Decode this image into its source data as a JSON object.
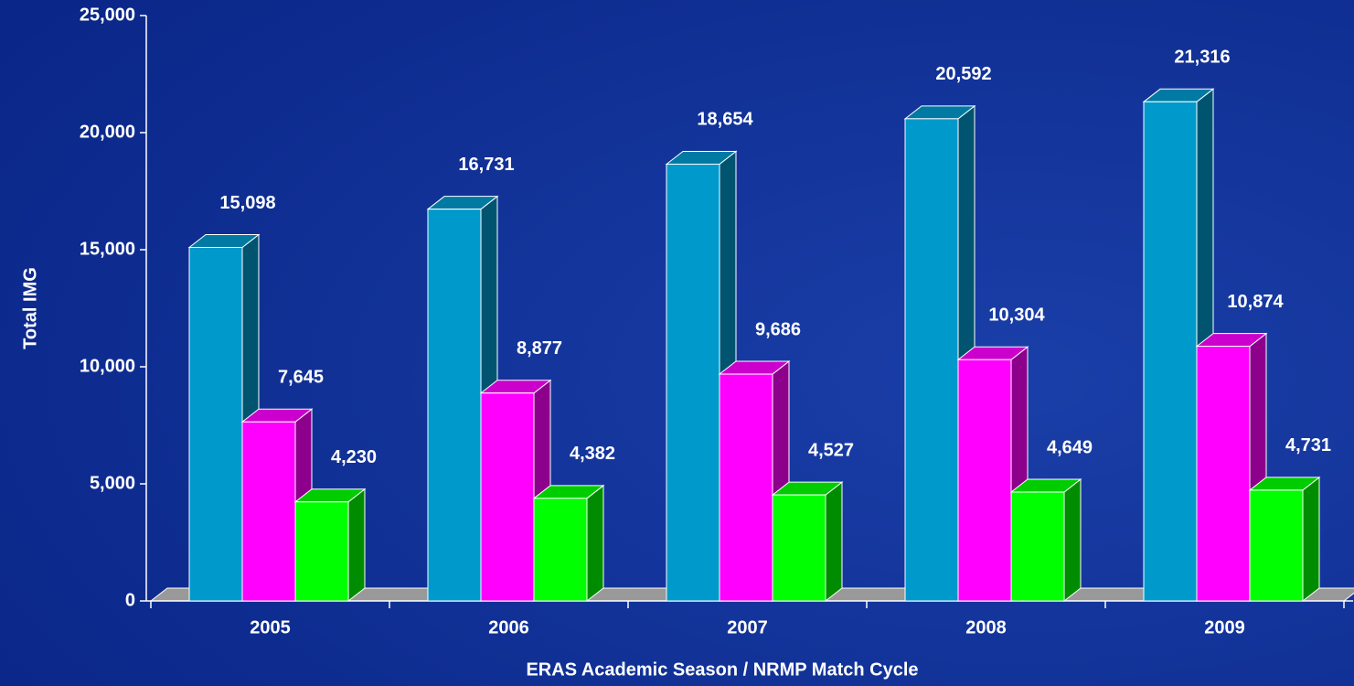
{
  "chart_data": {
    "type": "bar",
    "x_label": "ERAS Academic Season / NRMP Match Cycle",
    "y_label": "Total IMG",
    "categories": [
      "2005",
      "2006",
      "2007",
      "2008",
      "2009"
    ],
    "series": [
      {
        "color": "#0099cc",
        "values": [
          15098,
          16731,
          18654,
          20592,
          21316
        ],
        "value_labels": [
          "15,098",
          "16,731",
          "18,654",
          "20,592",
          "21,316"
        ]
      },
      {
        "color": "#ff00ff",
        "values": [
          7645,
          8877,
          9686,
          10304,
          10874
        ],
        "value_labels": [
          "7,645",
          "8,877",
          "9,686",
          "10,304",
          "10,874"
        ]
      },
      {
        "color": "#00ff00",
        "values": [
          4230,
          4382,
          4527,
          4649,
          4731
        ],
        "value_labels": [
          "4,230",
          "4,382",
          "4,527",
          "4,649",
          "4,731"
        ]
      }
    ],
    "ylim": [
      0,
      25000
    ],
    "yticks": [
      0,
      {
        "value": 5000,
        "label": "5,000"
      },
      {
        "value": 10000,
        "label": "10,000"
      },
      {
        "value": 15000,
        "label": "15,000"
      },
      {
        "value": 20000,
        "label": "20,000"
      },
      {
        "value": 25000,
        "label": "25,000"
      }
    ]
  }
}
